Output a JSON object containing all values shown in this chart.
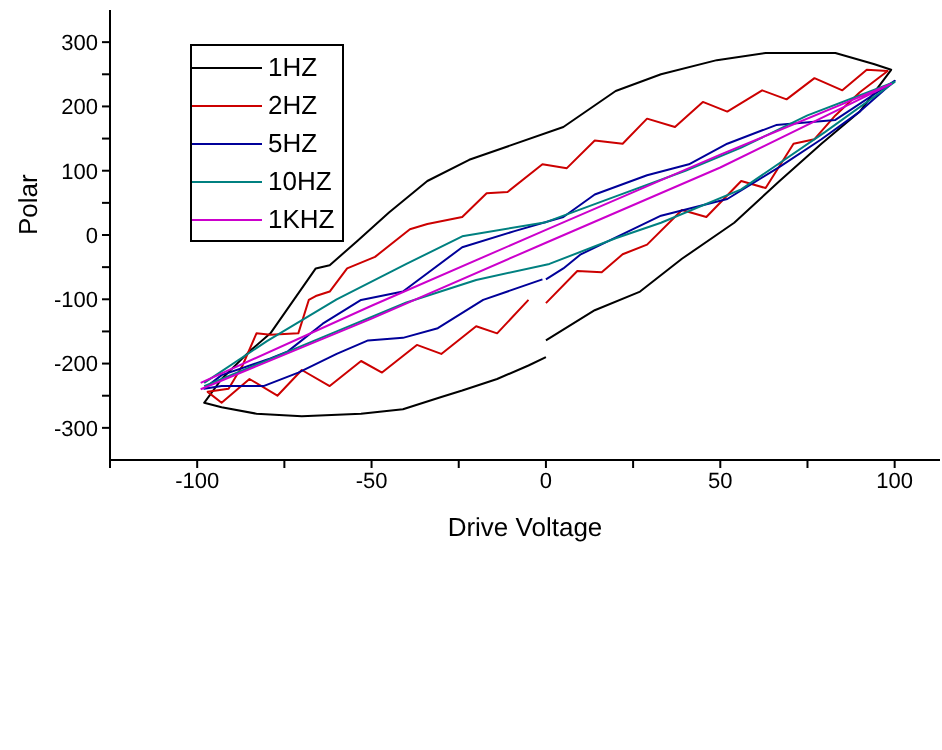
{
  "chart_data": {
    "type": "line",
    "xlabel": "Drive Voltage",
    "ylabel": "Polar",
    "xlim": [
      -125,
      113
    ],
    "ylim": [
      -350,
      350
    ],
    "xticks": [
      {
        "value": -125,
        "label": null
      },
      -100,
      {
        "value": -75,
        "label": null
      },
      -50,
      {
        "value": -25,
        "label": null
      },
      0,
      {
        "value": 25,
        "label": null
      },
      50,
      {
        "value": 75,
        "label": null
      },
      100
    ],
    "yticks": [
      -300,
      {
        "value": -250,
        "label": null
      },
      -200,
      {
        "value": -150,
        "label": null
      },
      -100,
      {
        "value": -50,
        "label": null
      },
      0,
      {
        "value": 50,
        "label": null
      },
      100,
      {
        "value": 150,
        "label": null
      },
      200,
      {
        "value": 250,
        "label": null
      },
      300
    ],
    "legend": "top left",
    "grid": false,
    "series": [
      {
        "name": "1HZ",
        "color": "#000000",
        "x": [
          0,
          14,
          27,
          39,
          54,
          67,
          79,
          90,
          99,
          94,
          83,
          63,
          49,
          33,
          20,
          5,
          -22,
          -34,
          -45,
          -54,
          -62,
          -66,
          -79,
          -85,
          -93,
          -98,
          -93,
          -83,
          -70,
          -53,
          -41,
          -30,
          -24,
          -14,
          -5,
          0
        ],
        "values": [
          -164,
          -117,
          -88,
          -37,
          19,
          84,
          142,
          192,
          257,
          266,
          283,
          283,
          272,
          250,
          224,
          168,
          117,
          84,
          35,
          -9,
          -47,
          -52,
          -153,
          -181,
          -224,
          -261,
          -268,
          -278,
          -282,
          -278,
          -271,
          -252,
          -242,
          -224,
          -203,
          -190
        ]
      },
      {
        "name": "2HZ",
        "color": "#cc0000",
        "x": [
          0,
          9,
          16,
          22,
          29,
          39,
          46,
          56,
          63,
          71,
          77,
          83,
          90,
          98,
          92,
          85,
          77,
          69,
          62,
          52,
          45,
          37,
          29,
          22,
          14,
          6,
          -1,
          -11,
          -17,
          -24,
          -34,
          -39,
          -49,
          -57,
          -62,
          -66,
          -68,
          -71,
          -79,
          -83,
          -87,
          -91,
          -97,
          -93,
          -85,
          -77,
          -70,
          -62,
          -53,
          -47,
          -37,
          -30,
          -20,
          -14,
          -5
        ],
        "values": [
          -106,
          -56,
          -58,
          -30,
          -15,
          39,
          28,
          84,
          73,
          142,
          149,
          186,
          222,
          255,
          257,
          225,
          244,
          211,
          225,
          192,
          207,
          168,
          181,
          142,
          147,
          104,
          110,
          67,
          65,
          28,
          17,
          9,
          -34,
          -52,
          -88,
          -95,
          -101,
          -153,
          -155,
          -153,
          -203,
          -239,
          -244,
          -261,
          -224,
          -250,
          -210,
          -235,
          -196,
          -214,
          -171,
          -185,
          -142,
          -153,
          -101
        ]
      },
      {
        "name": "5HZ",
        "color": "#000099",
        "x": [
          0,
          5,
          10,
          18,
          33,
          52,
          67,
          79,
          90,
          100,
          83,
          66,
          52,
          41,
          29,
          14,
          5,
          -9,
          -24,
          -41,
          -53,
          -64,
          -74,
          -79,
          -93,
          -98,
          -93,
          -81,
          -71,
          -60,
          -51,
          -41,
          -31,
          -18,
          -1
        ],
        "values": [
          -69,
          -52,
          -30,
          -9,
          30,
          56,
          106,
          149,
          192,
          240,
          179,
          171,
          142,
          110,
          93,
          63,
          28,
          6,
          -19,
          -88,
          -101,
          -138,
          -181,
          -192,
          -218,
          -239,
          -235,
          -235,
          -214,
          -185,
          -164,
          -160,
          -145,
          -101,
          -69
        ]
      },
      {
        "name": "10HZ",
        "color": "#008080",
        "x": [
          -98,
          -80,
          -60,
          -40,
          -20,
          1,
          20,
          33,
          56,
          80,
          100,
          75,
          56,
          40,
          20,
          0,
          -24,
          -40,
          -60,
          -80,
          -98
        ],
        "values": [
          -235,
          -195,
          -150,
          -105,
          -70,
          -45,
          -5,
          19,
          71,
          160,
          238,
          186,
          136,
          100,
          60,
          20,
          -2,
          -45,
          -100,
          -165,
          -230
        ]
      },
      {
        "name": "1KHZ",
        "color": "#cc00cc",
        "x": [
          -99,
          -50,
          0,
          50,
          99,
          50,
          0,
          -50,
          -99
        ],
        "values": [
          -240,
          -130,
          -12,
          105,
          235,
          125,
          8,
          -110,
          -230
        ]
      }
    ]
  }
}
